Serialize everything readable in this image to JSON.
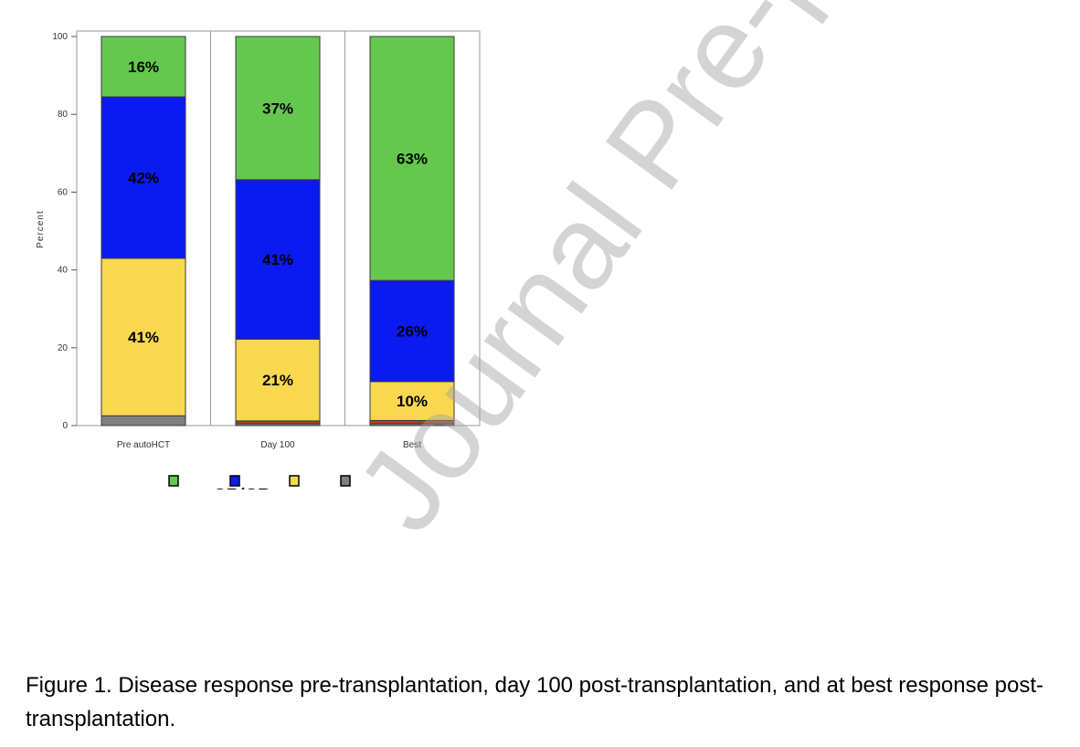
{
  "chart_data": {
    "type": "bar",
    "stacked": true,
    "categories": [
      "Pre autoHCT",
      "Day 100",
      "Best"
    ],
    "series": [
      {
        "values": [
          2.5,
          0.5,
          0.5
        ],
        "labels": [
          "",
          "",
          ""
        ],
        "color": "#7f7f7f"
      },
      {
        "values": [
          0,
          0.7,
          0.8
        ],
        "labels": [
          "",
          "",
          ""
        ],
        "color": "#b5401e"
      },
      {
        "values": [
          40.5,
          21,
          10
        ],
        "labels": [
          "41%",
          "21%",
          "10%"
        ],
        "color": "#f8d84f"
      },
      {
        "values": [
          41.5,
          41,
          26
        ],
        "labels": [
          "42%",
          "41%",
          "26%"
        ],
        "color": "#0b1af0"
      },
      {
        "values": [
          15.5,
          36.8,
          62.7
        ],
        "labels": [
          "16%",
          "37%",
          "63%"
        ],
        "color": "#64c84e"
      }
    ],
    "ylabel": "Percent",
    "ylim": [
      0,
      100
    ],
    "yticks": [
      0,
      20,
      40,
      60,
      80,
      100
    ],
    "legend": {
      "placement": "bottom",
      "swatch_colors": [
        "#64c84e",
        "#0b1af0",
        "#f8d84f",
        "#7f7f7f"
      ],
      "partial_text": "sCR/CR"
    }
  },
  "watermark": "Journal Pre-proof",
  "caption": "Figure 1. Disease response pre-transplantation, day 100 post-transplantation, and at best response post-transplantation."
}
